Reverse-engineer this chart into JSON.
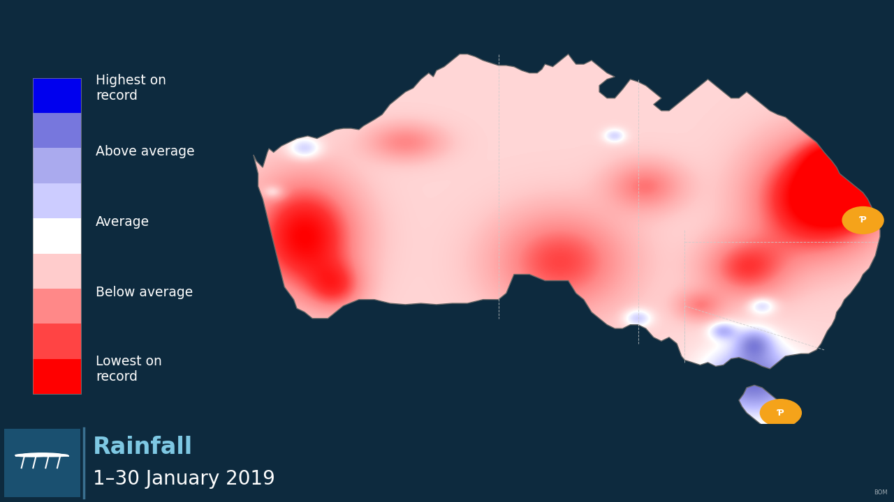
{
  "background_color": "#0d2a3e",
  "title": "Rainfall",
  "subtitle": "1–30 January 2019",
  "title_color": "#7ec8e3",
  "subtitle_color": "#ffffff",
  "legend_labels": [
    "Highest on\nrecord",
    "Above average",
    "Average",
    "Below average",
    "Lowest on\nrecord"
  ],
  "footer_bg_color": "#1a4060",
  "cloud_icon_bg": "#1e5070",
  "figsize": [
    12.8,
    7.2
  ],
  "dpi": 100,
  "lon_min": 113.0,
  "lon_max": 154.5,
  "lat_min": -44.0,
  "lat_max": -10.5
}
